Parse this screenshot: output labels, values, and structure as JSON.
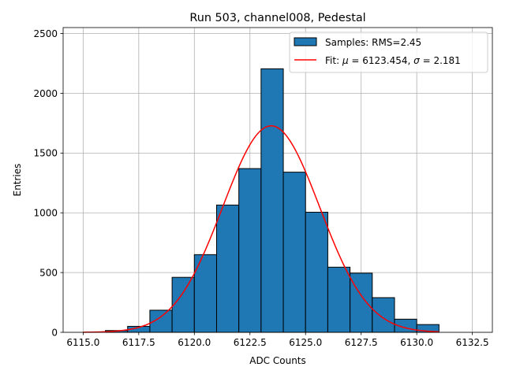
{
  "chart_data": {
    "type": "bar",
    "title": "Run 503, channel008, Pedestal",
    "xlabel": "ADC Counts",
    "ylabel": "Entries",
    "xlim": [
      6114.1,
      6133.4
    ],
    "ylim": [
      0,
      2550
    ],
    "grid": true,
    "legend_placement": "top-right",
    "x_ticks": [
      6115.0,
      6117.5,
      6120.0,
      6122.5,
      6125.0,
      6127.5,
      6130.0,
      6132.5
    ],
    "x_tick_labels": [
      "6115.0",
      "6117.5",
      "6120.0",
      "6122.5",
      "6125.0",
      "6127.5",
      "6130.0",
      "6132.5"
    ],
    "y_ticks": [
      0,
      500,
      1000,
      1500,
      2000,
      2500
    ],
    "y_tick_labels": [
      "0",
      "500",
      "1000",
      "1500",
      "2000",
      "2500"
    ],
    "histogram": {
      "name": "Samples: RMS=2.45",
      "bin_width": 1,
      "bin_edges_start": [
        6116,
        6117,
        6118,
        6119,
        6120,
        6121,
        6122,
        6123,
        6124,
        6125,
        6126,
        6127,
        6128,
        6129,
        6130
      ],
      "values": [
        15,
        50,
        185,
        460,
        650,
        1065,
        1370,
        2205,
        1340,
        1005,
        545,
        495,
        290,
        110,
        65
      ],
      "color": "#1f77b4",
      "edge_color": "#000000"
    },
    "fit": {
      "name": "Fit: μ = 6123.454, σ = 2.181",
      "mu": 6123.454,
      "sigma": 2.181,
      "amplitude": 1728,
      "x_range": [
        6115,
        6131
      ],
      "color": "#ff0000"
    },
    "legend": [
      {
        "label": "Samples: RMS=2.45",
        "marker": "patch",
        "color": "#1f77b4"
      },
      {
        "label_prefix": "Fit: ",
        "mu_symbol": "μ",
        "mu_text": " = 6123.454, ",
        "sigma_symbol": "σ",
        "sigma_text": " = 2.181",
        "marker": "line",
        "color": "#ff0000"
      }
    ]
  }
}
